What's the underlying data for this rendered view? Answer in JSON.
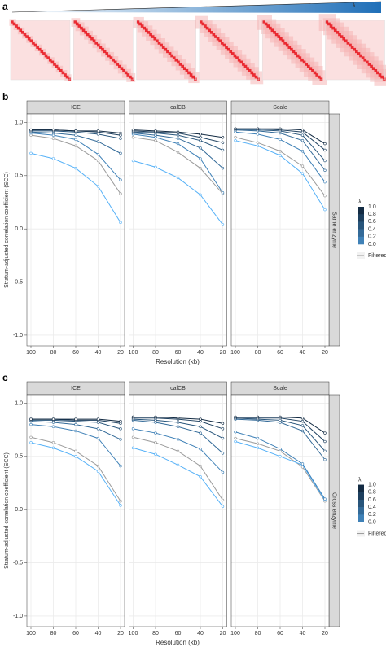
{
  "panel_a": {
    "label": "a",
    "lambda": "λ"
  },
  "chart_data": [
    {
      "type": "line",
      "panel_label": "b",
      "ylabel": "Stratum-adjusted correlation coefficient (SCC)",
      "xlabel": "Resolution (kb)",
      "strip_right": "Same enzyme",
      "legend_title": "λ",
      "categories": [
        "100",
        "80",
        "60",
        "40",
        "20"
      ],
      "ylim": [
        -1.1,
        1.08
      ],
      "yticks": [
        {
          "value": -1.0,
          "label": "-1.0"
        },
        {
          "value": -0.5,
          "label": "-0.5"
        },
        {
          "value": 0.0,
          "label": "0.0"
        },
        {
          "value": 0.5,
          "label": "0.5"
        },
        {
          "value": 1.0,
          "label": "1.0"
        }
      ],
      "grid": true,
      "series": [
        {
          "name": "1.0",
          "color": "#132b43"
        },
        {
          "name": "0.8",
          "color": "#1d3f5e"
        },
        {
          "name": "0.6",
          "color": "#28557b"
        },
        {
          "name": "0.4",
          "color": "#336a98"
        },
        {
          "name": "0.2",
          "color": "#3f81b7"
        },
        {
          "name": "0.0",
          "color": "#56b1f7"
        },
        {
          "name": "Filtered",
          "color": "#9a9a9a"
        }
      ],
      "facets": [
        {
          "title": "ICE",
          "values": [
            [
              0.93,
              0.93,
              0.92,
              0.92,
              0.9
            ],
            [
              0.93,
              0.93,
              0.92,
              0.91,
              0.88
            ],
            [
              0.92,
              0.92,
              0.91,
              0.89,
              0.85
            ],
            [
              0.91,
              0.9,
              0.88,
              0.82,
              0.71
            ],
            [
              0.9,
              0.88,
              0.84,
              0.7,
              0.46
            ],
            [
              0.71,
              0.66,
              0.57,
              0.4,
              0.06
            ],
            [
              0.88,
              0.85,
              0.78,
              0.64,
              0.33
            ]
          ]
        },
        {
          "title": "calCB",
          "values": [
            [
              0.93,
              0.92,
              0.91,
              0.89,
              0.86
            ],
            [
              0.92,
              0.91,
              0.9,
              0.86,
              0.81
            ],
            [
              0.91,
              0.9,
              0.88,
              0.83,
              0.74
            ],
            [
              0.9,
              0.88,
              0.85,
              0.76,
              0.57
            ],
            [
              0.89,
              0.86,
              0.8,
              0.66,
              0.34
            ],
            [
              0.64,
              0.58,
              0.48,
              0.32,
              0.04
            ],
            [
              0.86,
              0.83,
              0.72,
              0.57,
              0.33
            ]
          ]
        },
        {
          "title": "Scale",
          "values": [
            [
              0.94,
              0.94,
              0.94,
              0.93,
              0.8
            ],
            [
              0.94,
              0.94,
              0.93,
              0.91,
              0.74
            ],
            [
              0.93,
              0.93,
              0.92,
              0.88,
              0.64
            ],
            [
              0.93,
              0.92,
              0.9,
              0.83,
              0.55
            ],
            [
              0.91,
              0.89,
              0.84,
              0.73,
              0.44
            ],
            [
              0.83,
              0.78,
              0.69,
              0.52,
              0.18
            ],
            [
              0.86,
              0.81,
              0.73,
              0.59,
              0.31
            ]
          ]
        }
      ]
    },
    {
      "type": "line",
      "panel_label": "c",
      "ylabel": "Stratum-adjusted correlation coefficient (SCC)",
      "xlabel": "Resolution (kb)",
      "strip_right": "Cross enzyme",
      "legend_title": "λ",
      "categories": [
        "100",
        "80",
        "60",
        "40",
        "20"
      ],
      "ylim": [
        -1.1,
        1.08
      ],
      "yticks": [
        {
          "value": -1.0,
          "label": "-1.0"
        },
        {
          "value": -0.5,
          "label": "-0.5"
        },
        {
          "value": 0.0,
          "label": "0.0"
        },
        {
          "value": 0.5,
          "label": "0.5"
        },
        {
          "value": 1.0,
          "label": "1.0"
        }
      ],
      "grid": true,
      "series": [
        {
          "name": "1.0",
          "color": "#132b43"
        },
        {
          "name": "0.8",
          "color": "#1d3f5e"
        },
        {
          "name": "0.6",
          "color": "#28557b"
        },
        {
          "name": "0.4",
          "color": "#336a98"
        },
        {
          "name": "0.2",
          "color": "#3f81b7"
        },
        {
          "name": "0.0",
          "color": "#56b1f7"
        },
        {
          "name": "Filtered",
          "color": "#9a9a9a"
        }
      ],
      "facets": [
        {
          "title": "ICE",
          "values": [
            [
              0.85,
              0.85,
              0.85,
              0.85,
              0.83
            ],
            [
              0.85,
              0.85,
              0.84,
              0.84,
              0.81
            ],
            [
              0.84,
              0.84,
              0.83,
              0.82,
              0.76
            ],
            [
              0.83,
              0.82,
              0.8,
              0.76,
              0.66
            ],
            [
              0.8,
              0.78,
              0.74,
              0.67,
              0.41
            ],
            [
              0.63,
              0.58,
              0.5,
              0.36,
              0.04
            ],
            [
              0.68,
              0.63,
              0.55,
              0.41,
              0.08
            ]
          ]
        },
        {
          "title": "calCB",
          "values": [
            [
              0.87,
              0.87,
              0.86,
              0.85,
              0.81
            ],
            [
              0.86,
              0.86,
              0.85,
              0.83,
              0.76
            ],
            [
              0.85,
              0.84,
              0.82,
              0.78,
              0.67
            ],
            [
              0.84,
              0.82,
              0.78,
              0.72,
              0.53
            ],
            [
              0.76,
              0.72,
              0.66,
              0.57,
              0.35
            ],
            [
              0.58,
              0.52,
              0.42,
              0.31,
              0.03
            ],
            [
              0.68,
              0.63,
              0.55,
              0.41,
              0.09
            ]
          ]
        },
        {
          "title": "Scale",
          "values": [
            [
              0.87,
              0.87,
              0.87,
              0.86,
              0.72
            ],
            [
              0.86,
              0.86,
              0.86,
              0.83,
              0.64
            ],
            [
              0.86,
              0.85,
              0.84,
              0.79,
              0.55
            ],
            [
              0.85,
              0.84,
              0.82,
              0.74,
              0.47
            ],
            [
              0.73,
              0.67,
              0.57,
              0.43,
              0.1
            ],
            [
              0.64,
              0.58,
              0.5,
              0.42,
              0.09
            ],
            [
              0.67,
              0.62,
              0.55,
              0.4,
              0.08
            ]
          ]
        }
      ]
    }
  ]
}
